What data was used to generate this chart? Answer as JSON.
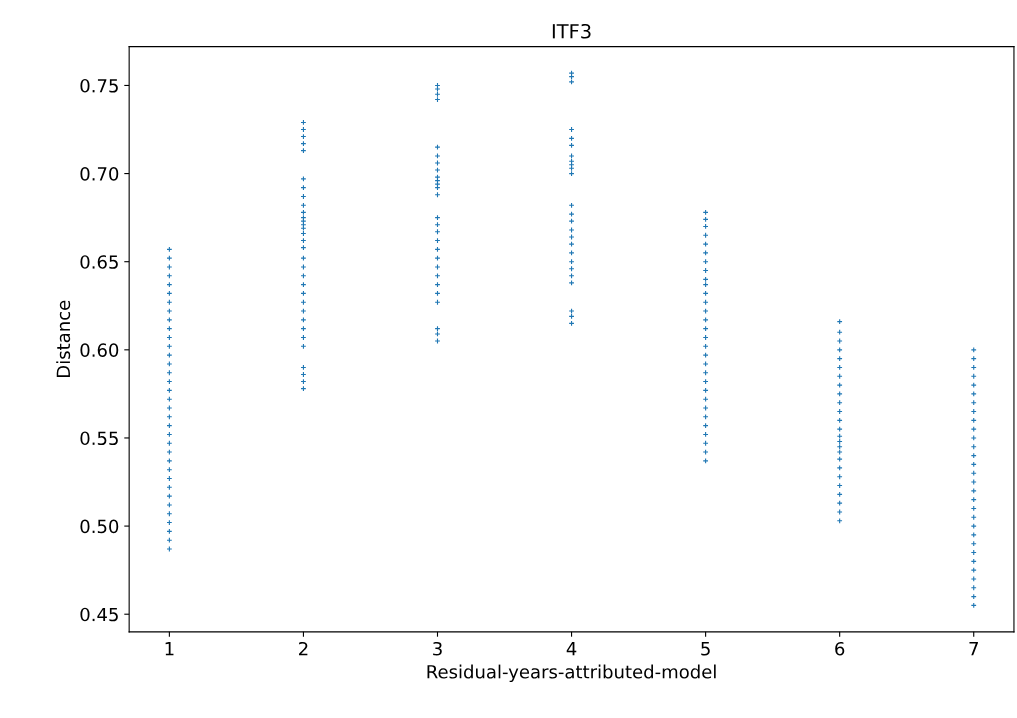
{
  "chart_data": {
    "type": "scatter",
    "title": "ITF3",
    "xlabel": "Residual-years-attributed-model",
    "ylabel": "Distance",
    "marker": "cross",
    "xlim": [
      0.7,
      7.3
    ],
    "ylim": [
      0.44,
      0.772
    ],
    "xticks": [
      1,
      2,
      3,
      4,
      5,
      6,
      7
    ],
    "yticks": [
      0.45,
      {
        "value": 0.5,
        "label": "0.50"
      },
      0.55,
      {
        "value": 0.6,
        "label": "0.60"
      },
      0.65,
      {
        "value": 0.7,
        "label": "0.70"
      },
      0.75
    ],
    "series": [
      {
        "color": "#1f77b4",
        "x": [
          1,
          1,
          1,
          1,
          1,
          1,
          1,
          1,
          1,
          1,
          1,
          1,
          1,
          1,
          1,
          1,
          1,
          1,
          1,
          1,
          1,
          1,
          1,
          1,
          1,
          1,
          1,
          1,
          1,
          1,
          1,
          1,
          1,
          1,
          1
        ],
        "values": [
          0.487,
          0.492,
          0.497,
          0.502,
          0.507,
          0.512,
          0.517,
          0.522,
          0.527,
          0.532,
          0.537,
          0.542,
          0.547,
          0.552,
          0.557,
          0.562,
          0.567,
          0.572,
          0.577,
          0.582,
          0.587,
          0.592,
          0.597,
          0.602,
          0.607,
          0.612,
          0.617,
          0.622,
          0.627,
          0.632,
          0.637,
          0.642,
          0.647,
          0.652,
          0.657
        ]
      },
      {
        "color": "#1f77b4",
        "x": [
          2,
          2,
          2,
          2,
          2,
          2,
          2,
          2,
          2,
          2,
          2,
          2,
          2,
          2,
          2,
          2,
          2,
          2,
          2,
          2,
          2,
          2,
          2,
          2,
          2,
          2,
          2,
          2,
          2,
          2,
          2,
          2
        ],
        "values": [
          0.578,
          0.582,
          0.586,
          0.59,
          0.602,
          0.607,
          0.612,
          0.617,
          0.622,
          0.627,
          0.632,
          0.637,
          0.642,
          0.647,
          0.652,
          0.658,
          0.662,
          0.666,
          0.669,
          0.671,
          0.673,
          0.675,
          0.678,
          0.682,
          0.687,
          0.692,
          0.697,
          0.713,
          0.717,
          0.721,
          0.725,
          0.729
        ]
      },
      {
        "color": "#1f77b4",
        "x": [
          3,
          3,
          3,
          3,
          3,
          3,
          3,
          3,
          3,
          3,
          3,
          3,
          3,
          3,
          3,
          3,
          3,
          3,
          3,
          3,
          3,
          3,
          3,
          3,
          3,
          3,
          3
        ],
        "values": [
          0.605,
          0.609,
          0.612,
          0.627,
          0.632,
          0.637,
          0.642,
          0.647,
          0.652,
          0.657,
          0.662,
          0.667,
          0.671,
          0.675,
          0.688,
          0.692,
          0.694,
          0.696,
          0.698,
          0.702,
          0.706,
          0.71,
          0.715,
          0.742,
          0.745,
          0.748,
          0.75
        ]
      },
      {
        "color": "#1f77b4",
        "x": [
          4,
          4,
          4,
          4,
          4,
          4,
          4,
          4,
          4,
          4,
          4,
          4,
          4,
          4,
          4,
          4,
          4,
          4,
          4,
          4,
          4,
          4,
          4,
          4,
          4
        ],
        "values": [
          0.615,
          0.619,
          0.622,
          0.638,
          0.642,
          0.646,
          0.65,
          0.655,
          0.66,
          0.664,
          0.668,
          0.673,
          0.677,
          0.682,
          0.7,
          0.703,
          0.705,
          0.707,
          0.71,
          0.716,
          0.72,
          0.725,
          0.752,
          0.755,
          0.757
        ]
      },
      {
        "color": "#1f77b4",
        "x": [
          5,
          5,
          5,
          5,
          5,
          5,
          5,
          5,
          5,
          5,
          5,
          5,
          5,
          5,
          5,
          5,
          5,
          5,
          5,
          5,
          5,
          5,
          5,
          5,
          5,
          5,
          5,
          5,
          5,
          5
        ],
        "values": [
          0.537,
          0.542,
          0.547,
          0.552,
          0.557,
          0.562,
          0.567,
          0.572,
          0.577,
          0.582,
          0.587,
          0.592,
          0.597,
          0.602,
          0.607,
          0.612,
          0.617,
          0.622,
          0.627,
          0.632,
          0.637,
          0.64,
          0.645,
          0.65,
          0.655,
          0.66,
          0.665,
          0.67,
          0.674,
          0.678
        ]
      },
      {
        "color": "#1f77b4",
        "x": [
          6,
          6,
          6,
          6,
          6,
          6,
          6,
          6,
          6,
          6,
          6,
          6,
          6,
          6,
          6,
          6,
          6,
          6,
          6,
          6,
          6,
          6,
          6,
          6,
          6
        ],
        "values": [
          0.503,
          0.508,
          0.513,
          0.518,
          0.523,
          0.528,
          0.533,
          0.538,
          0.542,
          0.545,
          0.548,
          0.551,
          0.555,
          0.56,
          0.565,
          0.57,
          0.575,
          0.58,
          0.585,
          0.59,
          0.595,
          0.6,
          0.605,
          0.61,
          0.616
        ]
      },
      {
        "color": "#1f77b4",
        "x": [
          7,
          7,
          7,
          7,
          7,
          7,
          7,
          7,
          7,
          7,
          7,
          7,
          7,
          7,
          7,
          7,
          7,
          7,
          7,
          7,
          7,
          7,
          7,
          7,
          7,
          7,
          7,
          7,
          7,
          7
        ],
        "values": [
          0.455,
          0.46,
          0.465,
          0.47,
          0.475,
          0.48,
          0.485,
          0.49,
          0.495,
          0.5,
          0.505,
          0.51,
          0.515,
          0.52,
          0.525,
          0.53,
          0.535,
          0.54,
          0.545,
          0.55,
          0.555,
          0.56,
          0.565,
          0.57,
          0.575,
          0.58,
          0.585,
          0.59,
          0.595,
          0.6
        ]
      }
    ]
  }
}
